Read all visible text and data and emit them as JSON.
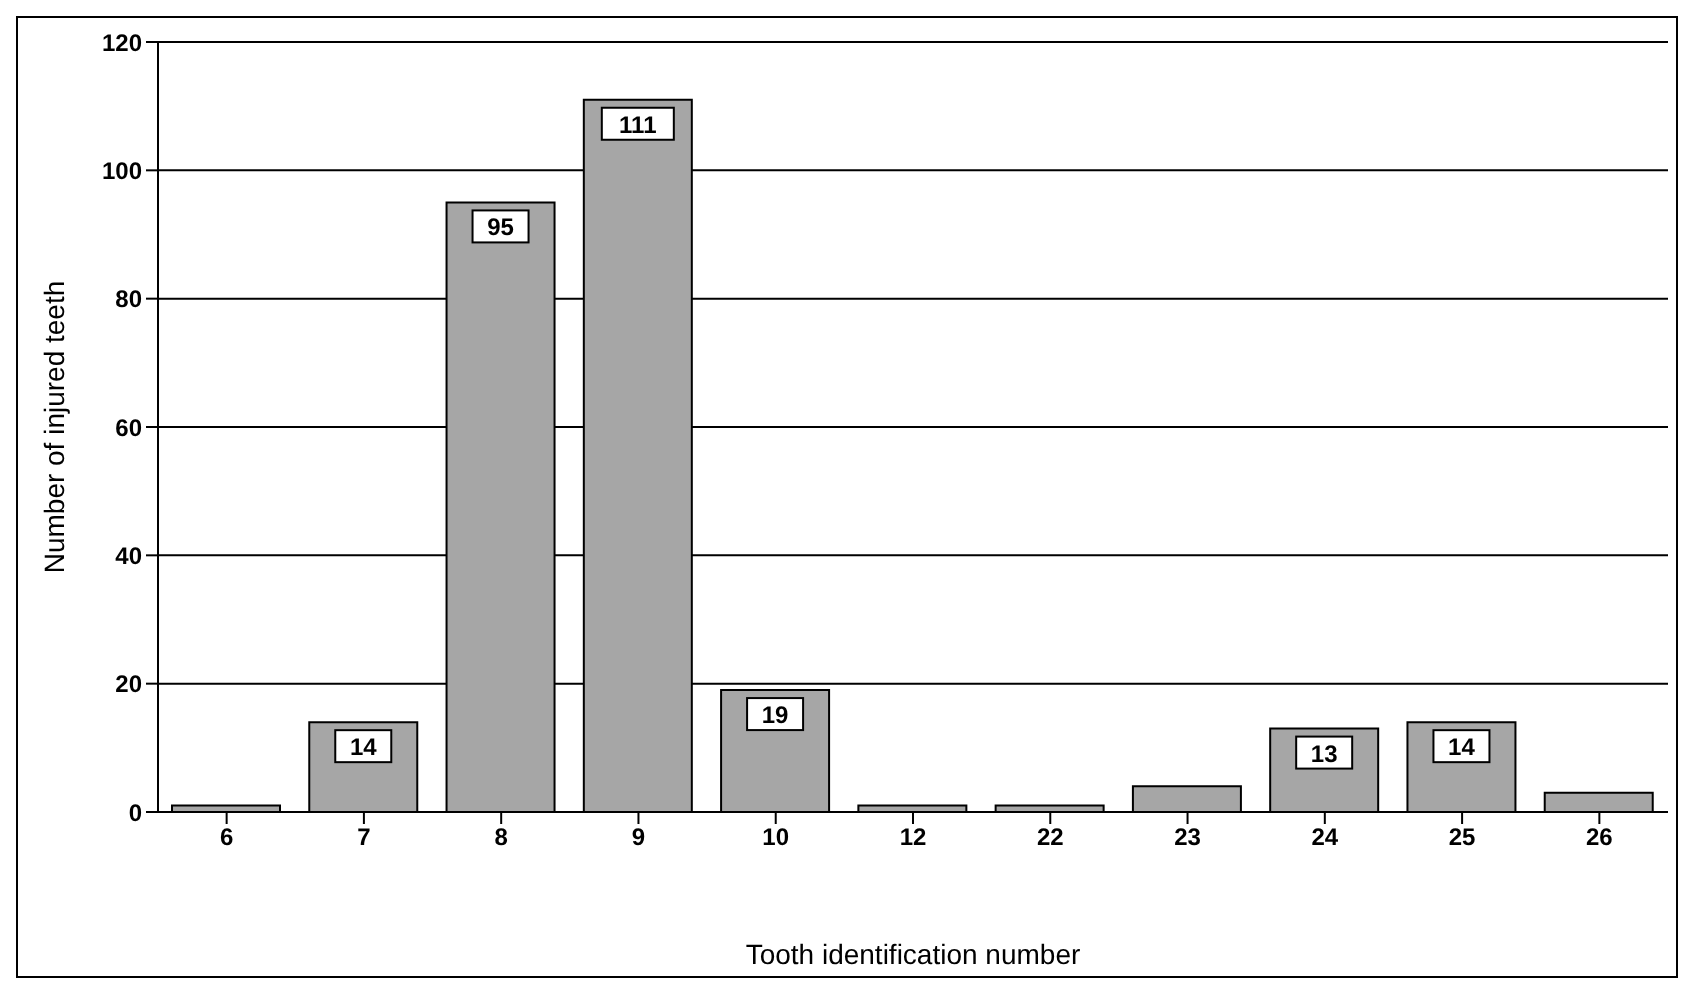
{
  "chart_data": {
    "type": "bar",
    "xlabel": "Tooth identification number",
    "ylabel": "Number of injured teeth",
    "categories": [
      "6",
      "7",
      "8",
      "9",
      "10",
      "12",
      "22",
      "23",
      "24",
      "25",
      "26"
    ],
    "values": [
      1,
      14,
      95,
      111,
      19,
      1,
      1,
      4,
      13,
      14,
      3
    ],
    "value_labels": [
      null,
      "14",
      "95",
      "111",
      "19",
      null,
      null,
      null,
      "13",
      "14",
      null
    ],
    "color": "#a6a6a6",
    "ylim": [
      0,
      120
    ],
    "yticks": [
      0,
      20,
      40,
      60,
      80,
      100,
      120
    ],
    "grid": "y"
  }
}
